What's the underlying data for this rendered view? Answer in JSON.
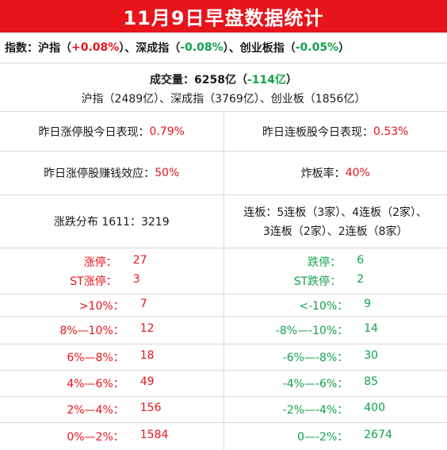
{
  "title": "11月9日早盘数据统计",
  "index_line": {
    "prefix": "指数：沪指（",
    "sh": "+0.08%",
    "mid1": "）、深成指（",
    "sz": "-0.08%",
    "mid2": "）、创业板指（",
    "cy": "-0.05%",
    "suffix": "）"
  },
  "volume": {
    "label": "成交量：6258亿（",
    "change": "-114亿",
    "suffix": "）",
    "detail": "沪指（2489亿）、深成指（3769亿）、创业板（1856亿）"
  },
  "stats": {
    "yest_limit_up_label": "昨日涨停股今日表现：",
    "yest_limit_up_value": "0.79%",
    "yest_consec_label": "昨日连板股今日表现：",
    "yest_consec_value": "0.53%",
    "profit_label": "昨日涨停股赚钱效应：",
    "profit_value": "50%",
    "break_label": "炸板率：",
    "break_value": "40%",
    "dist_text": "涨跌分布 1611：3219",
    "consec_line1": "连板：5连板（3家）、4连板（2家）、",
    "consec_line2": "3连板（2家）、2连板（8家）"
  },
  "rows": [
    {
      "left": [
        {
          "label": "涨停：",
          "value": "27"
        },
        {
          "label": "ST涨停：",
          "value": "3"
        }
      ],
      "right": [
        {
          "label": "跌停：",
          "value": "6"
        },
        {
          "label": "ST跌停：",
          "value": "2"
        }
      ]
    },
    {
      "left": [
        {
          "label": ">10%：",
          "value": "7"
        }
      ],
      "right": [
        {
          "label": "<-10%：",
          "value": "9"
        }
      ]
    },
    {
      "left": [
        {
          "label": "8%—10%：",
          "value": "12"
        }
      ],
      "right": [
        {
          "label": "-8%—-10%：",
          "value": "14"
        }
      ]
    },
    {
      "left": [
        {
          "label": "6%—8%：",
          "value": "18"
        }
      ],
      "right": [
        {
          "label": "-6%—-8%：",
          "value": "30"
        }
      ]
    },
    {
      "left": [
        {
          "label": "4%—6%：",
          "value": "49"
        }
      ],
      "right": [
        {
          "label": "-4%—-6%：",
          "value": "85"
        }
      ]
    },
    {
      "left": [
        {
          "label": "2%—4%：",
          "value": "156"
        }
      ],
      "right": [
        {
          "label": "-2%—-4%：",
          "value": "400"
        }
      ]
    },
    {
      "left": [
        {
          "label": "0%—2%：",
          "value": "1584"
        }
      ],
      "right": [
        {
          "label": "0—-2%：",
          "value": "2674"
        }
      ]
    }
  ],
  "colors": {
    "up": "#e8141c",
    "down": "#13a24a",
    "header_bg": "#e8141c"
  }
}
